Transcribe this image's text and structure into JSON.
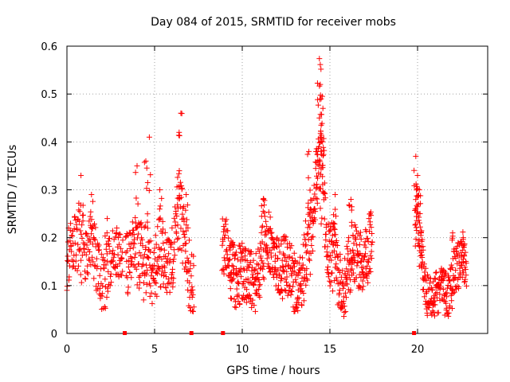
{
  "chart_data": {
    "type": "scatter",
    "title": "Day 084 of 2015, SRMTID for receiver mobs",
    "xlabel": "GPS time / hours",
    "ylabel": "SRMTID / TECUs",
    "xlim": [
      0,
      24
    ],
    "ylim": [
      0,
      0.6
    ],
    "xticks": [
      0,
      5,
      10,
      15,
      20
    ],
    "yticks": [
      0,
      0.1,
      0.2,
      0.3,
      0.4,
      0.5,
      0.6
    ],
    "xtick_labels": [
      "0",
      "5",
      "10",
      "15",
      "20"
    ],
    "ytick_labels": [
      "0",
      "0.1",
      "0.2",
      "0.3",
      "0.4",
      "0.5",
      "0.6"
    ],
    "grid": true,
    "marker": "+",
    "color": "#ff0000",
    "zero_markers_x": [
      3.3,
      7.1,
      8.9,
      19.8
    ],
    "segments": [
      {
        "start": 0.0,
        "end": 3.2,
        "base": 0.15,
        "spread": 0.06,
        "step": 0.016,
        "peaks": [
          [
            0.8,
            0.33
          ],
          [
            1.4,
            0.29
          ],
          [
            2.3,
            0.24
          ]
        ]
      },
      {
        "start": 3.35,
        "end": 7.25,
        "base": 0.14,
        "spread": 0.07,
        "step": 0.014,
        "peaks": [
          [
            4.0,
            0.35
          ],
          [
            4.5,
            0.36
          ],
          [
            4.7,
            0.41
          ],
          [
            5.3,
            0.3
          ],
          [
            6.5,
            0.46
          ],
          [
            6.4,
            0.42
          ],
          [
            6.8,
            0.29
          ]
        ]
      },
      {
        "start": 8.85,
        "end": 17.4,
        "base": 0.14,
        "spread": 0.065,
        "step": 0.012,
        "peaks": [
          [
            9.4,
            0.11
          ],
          [
            11.2,
            0.28
          ],
          [
            13.8,
            0.38
          ],
          [
            14.2,
            0.38
          ],
          [
            14.4,
            0.574
          ],
          [
            14.45,
            0.52
          ],
          [
            14.5,
            0.49
          ],
          [
            14.6,
            0.47
          ],
          [
            14.4,
            0.45
          ],
          [
            15.3,
            0.29
          ],
          [
            16.2,
            0.28
          ],
          [
            17.3,
            0.25
          ]
        ]
      },
      {
        "start": 19.85,
        "end": 22.8,
        "base": 0.1,
        "spread": 0.05,
        "step": 0.012,
        "peaks": [
          [
            19.9,
            0.37
          ],
          [
            20.0,
            0.33
          ],
          [
            20.1,
            0.3
          ],
          [
            20.2,
            0.21
          ],
          [
            22.0,
            0.21
          ],
          [
            22.6,
            0.2
          ]
        ]
      }
    ]
  }
}
